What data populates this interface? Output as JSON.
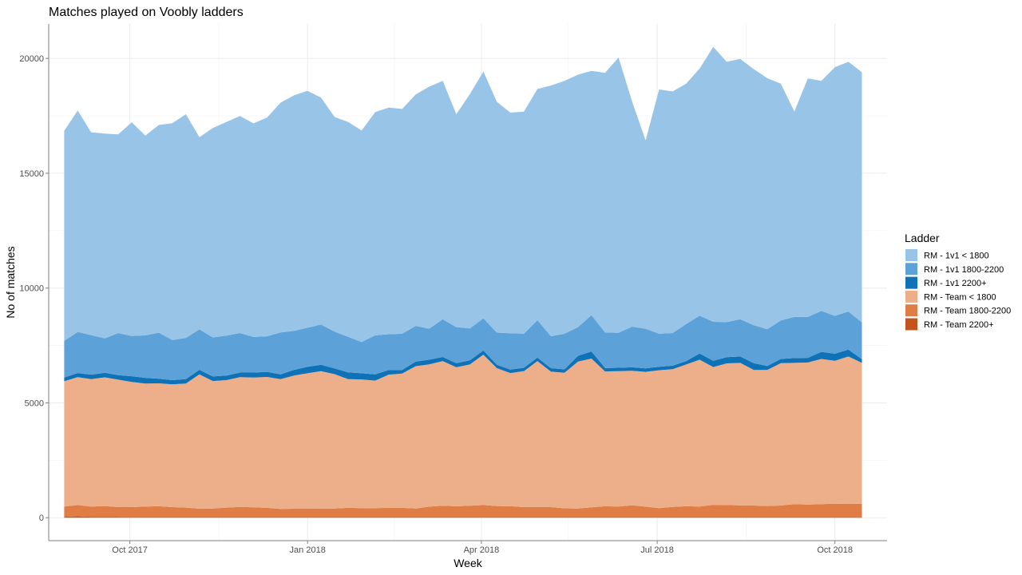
{
  "chart_data": {
    "type": "area",
    "stacked": true,
    "title": "Matches played on Voobly ladders",
    "xlabel": "Week",
    "ylabel": "No of matches",
    "legend_title": "Ladder",
    "legend_position": "right",
    "grid": true,
    "xlim": [
      "2017-08-20",
      "2018-10-28"
    ],
    "ylim": [
      -1000,
      21500
    ],
    "x_ticks": [
      {
        "date": "2017-10-01",
        "label": "Oct 2017"
      },
      {
        "date": "2018-01-01",
        "label": "Jan 2018"
      },
      {
        "date": "2018-04-01",
        "label": "Apr 2018"
      },
      {
        "date": "2018-07-01",
        "label": "Jul 2018"
      },
      {
        "date": "2018-10-01",
        "label": "Oct 2018"
      }
    ],
    "y_ticks": [
      0,
      5000,
      10000,
      15000,
      20000
    ],
    "x": [
      "2017-08-28",
      "2017-09-04",
      "2017-09-11",
      "2017-09-18",
      "2017-09-25",
      "2017-10-02",
      "2017-10-09",
      "2017-10-16",
      "2017-10-23",
      "2017-10-30",
      "2017-11-06",
      "2017-11-13",
      "2017-11-20",
      "2017-11-27",
      "2017-12-04",
      "2017-12-11",
      "2017-12-18",
      "2017-12-25",
      "2018-01-01",
      "2018-01-08",
      "2018-01-15",
      "2018-01-22",
      "2018-01-29",
      "2018-02-05",
      "2018-02-12",
      "2018-02-19",
      "2018-02-26",
      "2018-03-05",
      "2018-03-12",
      "2018-03-19",
      "2018-03-26",
      "2018-04-02",
      "2018-04-09",
      "2018-04-16",
      "2018-04-23",
      "2018-04-30",
      "2018-05-07",
      "2018-05-14",
      "2018-05-21",
      "2018-05-28",
      "2018-06-04",
      "2018-06-11",
      "2018-06-18",
      "2018-06-25",
      "2018-07-02",
      "2018-07-09",
      "2018-07-16",
      "2018-07-23",
      "2018-07-30",
      "2018-08-06",
      "2018-08-13",
      "2018-08-20",
      "2018-08-27",
      "2018-09-03",
      "2018-09-10",
      "2018-09-17",
      "2018-09-24",
      "2018-10-01",
      "2018-10-08",
      "2018-10-15"
    ],
    "series": [
      {
        "name": "RM - Team 2200+",
        "color": "#c4541e",
        "values": [
          40,
          60,
          40,
          40,
          40,
          30,
          30,
          30,
          30,
          30,
          30,
          30,
          30,
          30,
          30,
          30,
          30,
          30,
          30,
          30,
          30,
          30,
          30,
          30,
          30,
          30,
          30,
          30,
          30,
          30,
          30,
          30,
          30,
          30,
          30,
          30,
          30,
          30,
          30,
          30,
          30,
          30,
          30,
          30,
          30,
          30,
          30,
          30,
          30,
          30,
          30,
          30,
          30,
          30,
          30,
          30,
          30,
          30,
          30,
          30
        ]
      },
      {
        "name": "RM - Team 1800-2200",
        "color": "#e07d45",
        "values": [
          450,
          490,
          440,
          470,
          420,
          430,
          460,
          470,
          430,
          410,
          360,
          370,
          410,
          440,
          420,
          400,
          350,
          360,
          360,
          370,
          370,
          400,
          390,
          390,
          400,
          400,
          370,
          450,
          490,
          470,
          490,
          520,
          480,
          470,
          430,
          440,
          430,
          380,
          370,
          420,
          470,
          460,
          510,
          450,
          390,
          440,
          470,
          460,
          530,
          520,
          510,
          500,
          480,
          500,
          560,
          540,
          560,
          580,
          570,
          580
        ]
      },
      {
        "name": "RM - Team < 1800",
        "color": "#edae8a",
        "values": [
          5450,
          5570,
          5550,
          5600,
          5550,
          5450,
          5350,
          5350,
          5350,
          5400,
          5850,
          5550,
          5550,
          5650,
          5650,
          5700,
          5650,
          5800,
          5900,
          5980,
          5850,
          5600,
          5600,
          5550,
          5800,
          5850,
          6200,
          6200,
          6300,
          6050,
          6150,
          6550,
          6000,
          5800,
          5920,
          6350,
          5900,
          5900,
          6400,
          6480,
          5870,
          5890,
          5860,
          5870,
          6000,
          6000,
          6170,
          6390,
          6000,
          6170,
          6200,
          5900,
          5920,
          6200,
          6150,
          6190,
          6320,
          6220,
          6420,
          6130
        ]
      },
      {
        "name": "RM - 1v1 2200+",
        "color": "#0f72b6",
        "values": [
          160,
          180,
          200,
          200,
          200,
          250,
          250,
          200,
          180,
          200,
          200,
          200,
          200,
          200,
          220,
          220,
          210,
          250,
          280,
          280,
          250,
          300,
          270,
          270,
          200,
          150,
          200,
          200,
          180,
          180,
          180,
          180,
          150,
          150,
          150,
          150,
          150,
          150,
          250,
          310,
          150,
          150,
          150,
          150,
          150,
          150,
          150,
          270,
          270,
          270,
          280,
          300,
          180,
          180,
          210,
          200,
          310,
          310,
          300,
          160
        ]
      },
      {
        "name": "RM - 1v1 1800-2200",
        "color": "#5ca2d9",
        "values": [
          1600,
          1790,
          1720,
          1500,
          1830,
          1750,
          1850,
          2010,
          1750,
          1790,
          1760,
          1700,
          1740,
          1720,
          1550,
          1550,
          1830,
          1700,
          1700,
          1750,
          1600,
          1550,
          1360,
          1700,
          1560,
          1580,
          1550,
          1350,
          1640,
          1570,
          1390,
          1400,
          1400,
          1580,
          1480,
          1630,
          1390,
          1550,
          1250,
          1580,
          1550,
          1520,
          1770,
          1730,
          1440,
          1420,
          1610,
          1650,
          1700,
          1530,
          1620,
          1650,
          1600,
          1680,
          1790,
          1780,
          1780,
          1650,
          1660,
          1600
        ]
      },
      {
        "name": "RM - 1v1 < 1800",
        "color": "#98c4e8",
        "values": [
          9150,
          9640,
          8830,
          8920,
          8650,
          9310,
          8700,
          9040,
          9440,
          9740,
          8370,
          9120,
          9300,
          9450,
          9300,
          9520,
          10000,
          10250,
          10320,
          9880,
          9350,
          9350,
          9210,
          9720,
          9870,
          9790,
          10080,
          10540,
          10380,
          9270,
          10200,
          10750,
          10050,
          9610,
          9670,
          10070,
          10920,
          11010,
          10990,
          10640,
          11300,
          11990,
          9810,
          8200,
          10640,
          10520,
          10470,
          10760,
          11970,
          11330,
          11340,
          11150,
          10930,
          10310,
          8950,
          10390,
          10020,
          10830,
          10870,
          10900
        ]
      }
    ]
  }
}
